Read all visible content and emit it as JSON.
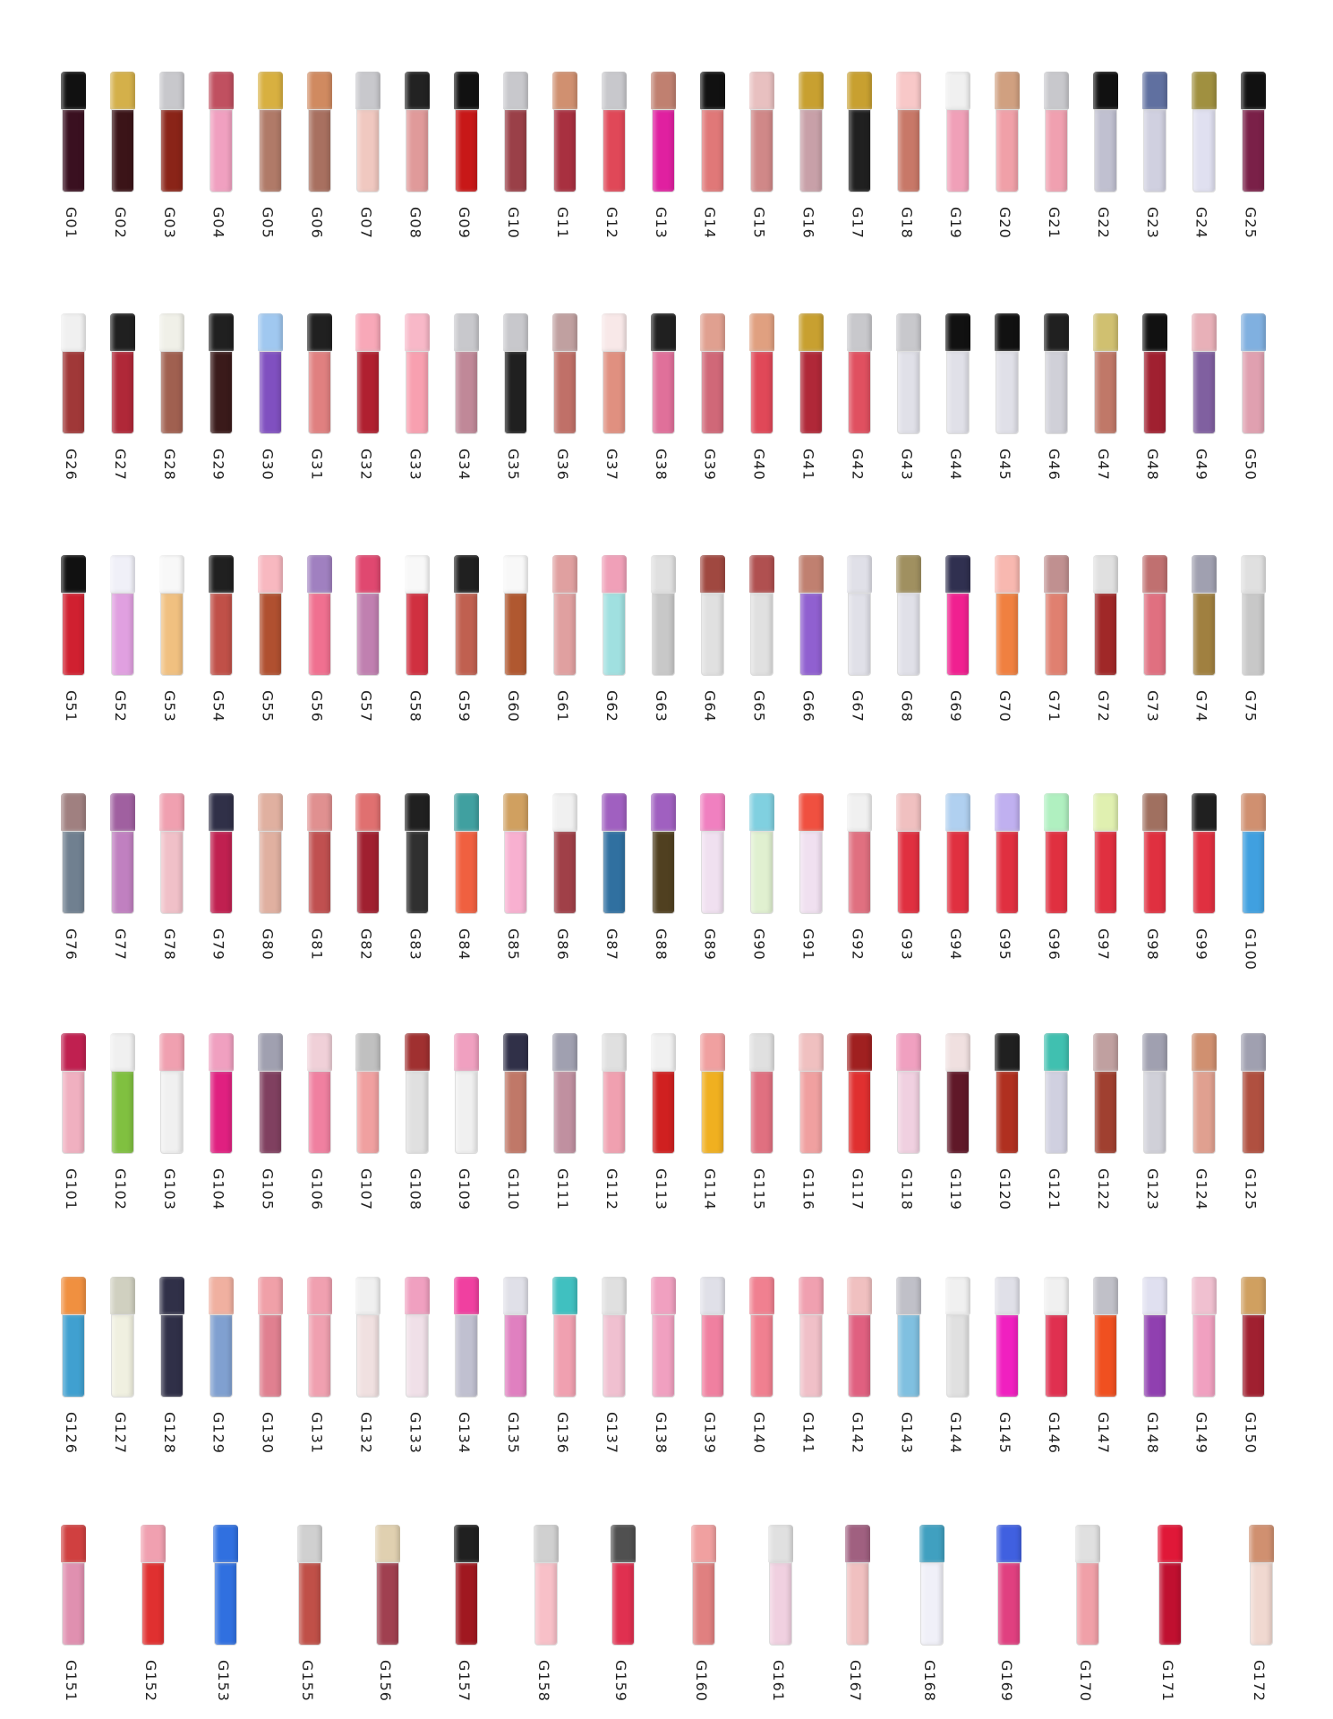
{
  "rows": [
    {
      "items": [
        {
          "label": "G01",
          "cap": "#111111",
          "body": "#3a1020"
        },
        {
          "label": "G02",
          "cap": "#d4b04a",
          "body": "#3b1418"
        },
        {
          "label": "G03",
          "cap": "#c8c8cc",
          "body": "#8a2418"
        },
        {
          "label": "G04",
          "cap": "#c05060",
          "body": "#f0a0c0"
        },
        {
          "label": "G05",
          "cap": "#d8b040",
          "body": "#b07a68"
        },
        {
          "label": "G06",
          "cap": "#d08a60",
          "body": "#a87060"
        },
        {
          "label": "G07",
          "cap": "#c8c8cc",
          "body": "#f0c8c0"
        },
        {
          "label": "G08",
          "cap": "#222222",
          "body": "#e09a9a"
        },
        {
          "label": "G09",
          "cap": "#111111",
          "body": "#c81818"
        },
        {
          "label": "G10",
          "cap": "#c8c8cc",
          "body": "#9a4048"
        },
        {
          "label": "G11",
          "cap": "#d09070",
          "body": "#a83040"
        },
        {
          "label": "G12",
          "cap": "#c8c8cc",
          "body": "#e04858"
        },
        {
          "label": "G13",
          "cap": "#c08070",
          "body": "#e020a0"
        },
        {
          "label": "G14",
          "cap": "#111111",
          "body": "#e07878"
        },
        {
          "label": "G15",
          "cap": "#e8c0c0",
          "body": "#d08888"
        },
        {
          "label": "G16",
          "cap": "#c8a030",
          "body": "#c8a0a8"
        },
        {
          "label": "G17",
          "cap": "#c8a030",
          "body": "#202020"
        },
        {
          "label": "G18",
          "cap": "#f8c8c8",
          "body": "#c87868"
        },
        {
          "label": "G19",
          "cap": "#f0f0f0",
          "body": "#f0a0b8"
        },
        {
          "label": "G20",
          "cap": "#d0a080",
          "body": "#f0a0a8"
        },
        {
          "label": "G21",
          "cap": "#c8c8cc",
          "body": "#f0a0b0"
        },
        {
          "label": "G22",
          "cap": "#111111",
          "body": "#c0c0d0"
        },
        {
          "label": "G23",
          "cap": "#6070a0",
          "body": "#d0d0e0"
        },
        {
          "label": "G24",
          "cap": "#a09040",
          "body": "#e0e0f0"
        },
        {
          "label": "G25",
          "cap": "#111111",
          "body": "#7a2048"
        }
      ]
    },
    {
      "items": [
        {
          "label": "G26",
          "cap": "#f0f0f0",
          "body": "#a03838"
        },
        {
          "label": "G27",
          "cap": "#202020",
          "body": "#b02838"
        },
        {
          "label": "G28",
          "cap": "#f0f0e8",
          "body": "#a06050"
        },
        {
          "label": "G29",
          "cap": "#202020",
          "body": "#3a1a1a"
        },
        {
          "label": "G30",
          "cap": "#a0c8f0",
          "body": "#8050c0"
        },
        {
          "label": "G31",
          "cap": "#202020",
          "body": "#e08080"
        },
        {
          "label": "G32",
          "cap": "#f8a8b8",
          "body": "#b02030"
        },
        {
          "label": "G33",
          "cap": "#f8b8c8",
          "body": "#f8a0b0"
        },
        {
          "label": "G34",
          "cap": "#c8c8cc",
          "body": "#c08898"
        },
        {
          "label": "G35",
          "cap": "#c8c8cc",
          "body": "#202020"
        },
        {
          "label": "G36",
          "cap": "#c0a0a0",
          "body": "#c07068"
        },
        {
          "label": "G37",
          "cap": "#f8e8e8",
          "body": "#e09080"
        },
        {
          "label": "G38",
          "cap": "#202020",
          "body": "#e0709a"
        },
        {
          "label": "G39",
          "cap": "#e0a090",
          "body": "#d06878"
        },
        {
          "label": "G40",
          "cap": "#e0a080",
          "body": "#e04858"
        },
        {
          "label": "G41",
          "cap": "#c8a030",
          "body": "#b02838"
        },
        {
          "label": "G42",
          "cap": "#c8c8cc",
          "body": "#e05060"
        },
        {
          "label": "G43",
          "cap": "#c8c8cc",
          "body": "#e0e0e8"
        },
        {
          "label": "G44",
          "cap": "#111111",
          "body": "#e0e0e8"
        },
        {
          "label": "G45",
          "cap": "#111111",
          "body": "#e0e0e8"
        },
        {
          "label": "G46",
          "cap": "#202020",
          "body": "#d0d0d8"
        },
        {
          "label": "G47",
          "cap": "#d0c070",
          "body": "#c07868"
        },
        {
          "label": "G48",
          "cap": "#111111",
          "body": "#a02030"
        },
        {
          "label": "G49",
          "cap": "#e8b0b8",
          "body": "#8060a0"
        },
        {
          "label": "G50",
          "cap": "#80b0e0",
          "body": "#e0a0b0"
        }
      ]
    },
    {
      "items": [
        {
          "label": "G51",
          "cap": "#111111",
          "body": "#d02030"
        },
        {
          "label": "G52",
          "cap": "#f0f0f8",
          "body": "#e0a0e0"
        },
        {
          "label": "G53",
          "cap": "#f8f8f8",
          "body": "#f0c080"
        },
        {
          "label": "G54",
          "cap": "#202020",
          "body": "#c05048"
        },
        {
          "label": "G55",
          "cap": "#f8b8c0",
          "body": "#b05030"
        },
        {
          "label": "G56",
          "cap": "#a080c0",
          "body": "#f07090"
        },
        {
          "label": "G57",
          "cap": "#e04870",
          "body": "#c080b0"
        },
        {
          "label": "G58",
          "cap": "#f8f8f8",
          "body": "#d03040"
        },
        {
          "label": "G59",
          "cap": "#202020",
          "body": "#c06050"
        },
        {
          "label": "G60",
          "cap": "#f8f8f8",
          "body": "#b05830"
        },
        {
          "label": "G61",
          "cap": "#e0a0a0",
          "body": "#e0a0a0"
        },
        {
          "label": "G62",
          "cap": "#f0a0b8",
          "body": "#a0e0e0"
        },
        {
          "label": "G63",
          "cap": "#e0e0e0",
          "body": "#c8c8c8"
        },
        {
          "label": "G64",
          "cap": "#a04840",
          "body": "#e0e0e0"
        },
        {
          "label": "G65",
          "cap": "#b05050",
          "body": "#e0e0e0"
        },
        {
          "label": "G66",
          "cap": "#c08070",
          "body": "#9060d0"
        },
        {
          "label": "G67",
          "cap": "#e0e0e8",
          "body": "#e0e0e8"
        },
        {
          "label": "G68",
          "cap": "#a09060",
          "body": "#e0e0e8"
        },
        {
          "label": "G69",
          "cap": "#303050",
          "body": "#f02090"
        },
        {
          "label": "G70",
          "cap": "#f8b8b0",
          "body": "#f08040"
        },
        {
          "label": "G71",
          "cap": "#c09090",
          "body": "#e08070"
        },
        {
          "label": "G72",
          "cap": "#e0e0e0",
          "body": "#a02828"
        },
        {
          "label": "G73",
          "cap": "#c07070",
          "body": "#e07080"
        },
        {
          "label": "G74",
          "cap": "#a0a0b0",
          "body": "#a08040"
        },
        {
          "label": "G75",
          "cap": "#e0e0e0",
          "body": "#c8c8c8"
        }
      ]
    },
    {
      "items": [
        {
          "label": "G76",
          "cap": "#a08080",
          "body": "#708090"
        },
        {
          "label": "G77",
          "cap": "#a060a0",
          "body": "#c080c0"
        },
        {
          "label": "G78",
          "cap": "#f0a0b0",
          "body": "#f0c0c8"
        },
        {
          "label": "G79",
          "cap": "#303048",
          "body": "#c02050"
        },
        {
          "label": "G80",
          "cap": "#e0b0a0",
          "body": "#e0b0a0"
        },
        {
          "label": "G81",
          "cap": "#e09090",
          "body": "#c05050"
        },
        {
          "label": "G82",
          "cap": "#e07070",
          "body": "#a02030"
        },
        {
          "label": "G83",
          "cap": "#202020",
          "body": "#303030"
        },
        {
          "label": "G84",
          "cap": "#40a0a0",
          "body": "#f06040"
        },
        {
          "label": "G85",
          "cap": "#d0a060",
          "body": "#f8b0d0"
        },
        {
          "label": "G86",
          "cap": "#f0f0f0",
          "body": "#a04048"
        },
        {
          "label": "G87",
          "cap": "#a060c0",
          "body": "#3070a0"
        },
        {
          "label": "G88",
          "cap": "#a060c0",
          "body": "#504020"
        },
        {
          "label": "G89",
          "cap": "#f080c0",
          "body": "#f0e0f0"
        },
        {
          "label": "G90",
          "cap": "#80d0e0",
          "body": "#e0f0d0"
        },
        {
          "label": "G91",
          "cap": "#f05040",
          "body": "#f0e0f0"
        },
        {
          "label": "G92",
          "cap": "#f0f0f0",
          "body": "#e07080"
        },
        {
          "label": "G93",
          "cap": "#f0c0c0",
          "body": "#e03040"
        },
        {
          "label": "G94",
          "cap": "#b0d0f0",
          "body": "#e03040"
        },
        {
          "label": "G95",
          "cap": "#c0b0f0",
          "body": "#e03040"
        },
        {
          "label": "G96",
          "cap": "#b0f0c0",
          "body": "#e03040"
        },
        {
          "label": "G97",
          "cap": "#e0f0b0",
          "body": "#e03040"
        },
        {
          "label": "G98",
          "cap": "#a07060",
          "body": "#e03040"
        },
        {
          "label": "G99",
          "cap": "#202020",
          "body": "#e03040"
        },
        {
          "label": "G100",
          "cap": "#d09070",
          "body": "#40a0e0"
        }
      ]
    },
    {
      "items": [
        {
          "label": "G101",
          "cap": "#c02050",
          "body": "#f0b0c0"
        },
        {
          "label": "G102",
          "cap": "#f0f0f0",
          "body": "#80c040"
        },
        {
          "label": "G103",
          "cap": "#f0a0b0",
          "body": "#f0f0f0"
        },
        {
          "label": "G104",
          "cap": "#f0a0c0",
          "body": "#e02080"
        },
        {
          "label": "G105",
          "cap": "#a0a0b0",
          "body": "#804060"
        },
        {
          "label": "G106",
          "cap": "#f0d0d8",
          "body": "#f080a0"
        },
        {
          "label": "G107",
          "cap": "#c0c0c0",
          "body": "#f0a0a0"
        },
        {
          "label": "G108",
          "cap": "#a03030",
          "body": "#e0e0e0"
        },
        {
          "label": "G109",
          "cap": "#f0a0c0",
          "body": "#f0f0f0"
        },
        {
          "label": "G110",
          "cap": "#303048",
          "body": "#c07868"
        },
        {
          "label": "G111",
          "cap": "#a0a0b0",
          "body": "#c090a0"
        },
        {
          "label": "G112",
          "cap": "#e0e0e0",
          "body": "#f0a0b0"
        },
        {
          "label": "G113",
          "cap": "#f0f0f0",
          "body": "#d02020"
        },
        {
          "label": "G114",
          "cap": "#f0a0a0",
          "body": "#f0b020"
        },
        {
          "label": "G115",
          "cap": "#e0e0e0",
          "body": "#e07080"
        },
        {
          "label": "G116",
          "cap": "#f0c0c0",
          "body": "#f0a0a0"
        },
        {
          "label": "G117",
          "cap": "#a02020",
          "body": "#e03030"
        },
        {
          "label": "G118",
          "cap": "#f0a0c0",
          "body": "#f0d0e0"
        },
        {
          "label": "G119",
          "cap": "#f0e0e0",
          "body": "#601828"
        },
        {
          "label": "G120",
          "cap": "#202020",
          "body": "#b03020"
        },
        {
          "label": "G121",
          "cap": "#40c0b0",
          "body": "#d0d0e0"
        },
        {
          "label": "G122",
          "cap": "#c0a0a0",
          "body": "#a04030"
        },
        {
          "label": "G123",
          "cap": "#a0a0b0",
          "body": "#d0d0d8"
        },
        {
          "label": "G124",
          "cap": "#d09070",
          "body": "#e0a090"
        },
        {
          "label": "G125",
          "cap": "#a0a0b0",
          "body": "#b05040"
        }
      ]
    },
    {
      "items": [
        {
          "label": "G126",
          "cap": "#f09040",
          "body": "#40a0d0"
        },
        {
          "label": "G127",
          "cap": "#d0d0c0",
          "body": "#f0f0e0"
        },
        {
          "label": "G128",
          "cap": "#303048",
          "body": "#303048"
        },
        {
          "label": "G129",
          "cap": "#f0b0a0",
          "body": "#80a0d0"
        },
        {
          "label": "G130",
          "cap": "#f0a0a8",
          "body": "#e08090"
        },
        {
          "label": "G131",
          "cap": "#f0a0b0",
          "body": "#f0a0b0"
        },
        {
          "label": "G132",
          "cap": "#f0f0f0",
          "body": "#f0e0e0"
        },
        {
          "label": "G133",
          "cap": "#f0a0c0",
          "body": "#f0e0e8"
        },
        {
          "label": "G134",
          "cap": "#f040a0",
          "body": "#c0c0d0"
        },
        {
          "label": "G135",
          "cap": "#e0e0e8",
          "body": "#e080c0"
        },
        {
          "label": "G136",
          "cap": "#40c0c0",
          "body": "#f0a0b0"
        },
        {
          "label": "G137",
          "cap": "#e0e0e0",
          "body": "#f0c0d0"
        },
        {
          "label": "G138",
          "cap": "#f0a0c0",
          "body": "#f0a0c0"
        },
        {
          "label": "G139",
          "cap": "#e0e0e8",
          "body": "#f080a0"
        },
        {
          "label": "G140",
          "cap": "#f08090",
          "body": "#f08090"
        },
        {
          "label": "G141",
          "cap": "#f0a0b0",
          "body": "#f0c0c8"
        },
        {
          "label": "G142",
          "cap": "#f0c0c0",
          "body": "#e06080"
        },
        {
          "label": "G143",
          "cap": "#c0c0c8",
          "body": "#80c0e0"
        },
        {
          "label": "G144",
          "cap": "#f0f0f0",
          "body": "#e0e0e0"
        },
        {
          "label": "G145",
          "cap": "#e0e0e8",
          "body": "#f020c0"
        },
        {
          "label": "G146",
          "cap": "#f0f0f0",
          "body": "#e03050"
        },
        {
          "label": "G147",
          "cap": "#c0c0c8",
          "body": "#f05020"
        },
        {
          "label": "G148",
          "cap": "#e0e0f0",
          "body": "#9040b0"
        },
        {
          "label": "G149",
          "cap": "#f0c0d0",
          "body": "#f0a0c0"
        },
        {
          "label": "G150",
          "cap": "#d0a060",
          "body": "#a02030"
        }
      ]
    },
    {
      "items": [
        {
          "label": "G151",
          "cap": "#d04040",
          "body": "#e090b0"
        },
        {
          "label": "G152",
          "cap": "#f0a0b0",
          "body": "#e03030"
        },
        {
          "label": "G153",
          "cap": "#3070e0",
          "body": "#3070e0"
        },
        {
          "label": "G155",
          "cap": "#d0d0d0",
          "body": "#c05048"
        },
        {
          "label": "G156",
          "cap": "#e0d0b0",
          "body": "#a04050"
        },
        {
          "label": "G157",
          "cap": "#202020",
          "body": "#a01820"
        },
        {
          "label": "G158",
          "cap": "#d0d0d0",
          "body": "#f8c0c8"
        },
        {
          "label": "G159",
          "cap": "#505050",
          "body": "#e03050"
        },
        {
          "label": "G160",
          "cap": "#f0a0a0",
          "body": "#e08080"
        },
        {
          "label": "G161",
          "cap": "#e0e0e0",
          "body": "#f0d0e0"
        },
        {
          "label": "G167",
          "cap": "#a06080",
          "body": "#f0c0c0"
        },
        {
          "label": "G168",
          "cap": "#40a0c0",
          "body": "#f0f0f8"
        },
        {
          "label": "G169",
          "cap": "#4060e0",
          "body": "#e04080"
        },
        {
          "label": "G170",
          "cap": "#e0e0e0",
          "body": "#f0a0a8"
        },
        {
          "label": "G171",
          "cap": "#e01838",
          "body": "#c01030"
        },
        {
          "label": "G172",
          "cap": "#d09070",
          "body": "#f0d8d0"
        }
      ]
    }
  ]
}
